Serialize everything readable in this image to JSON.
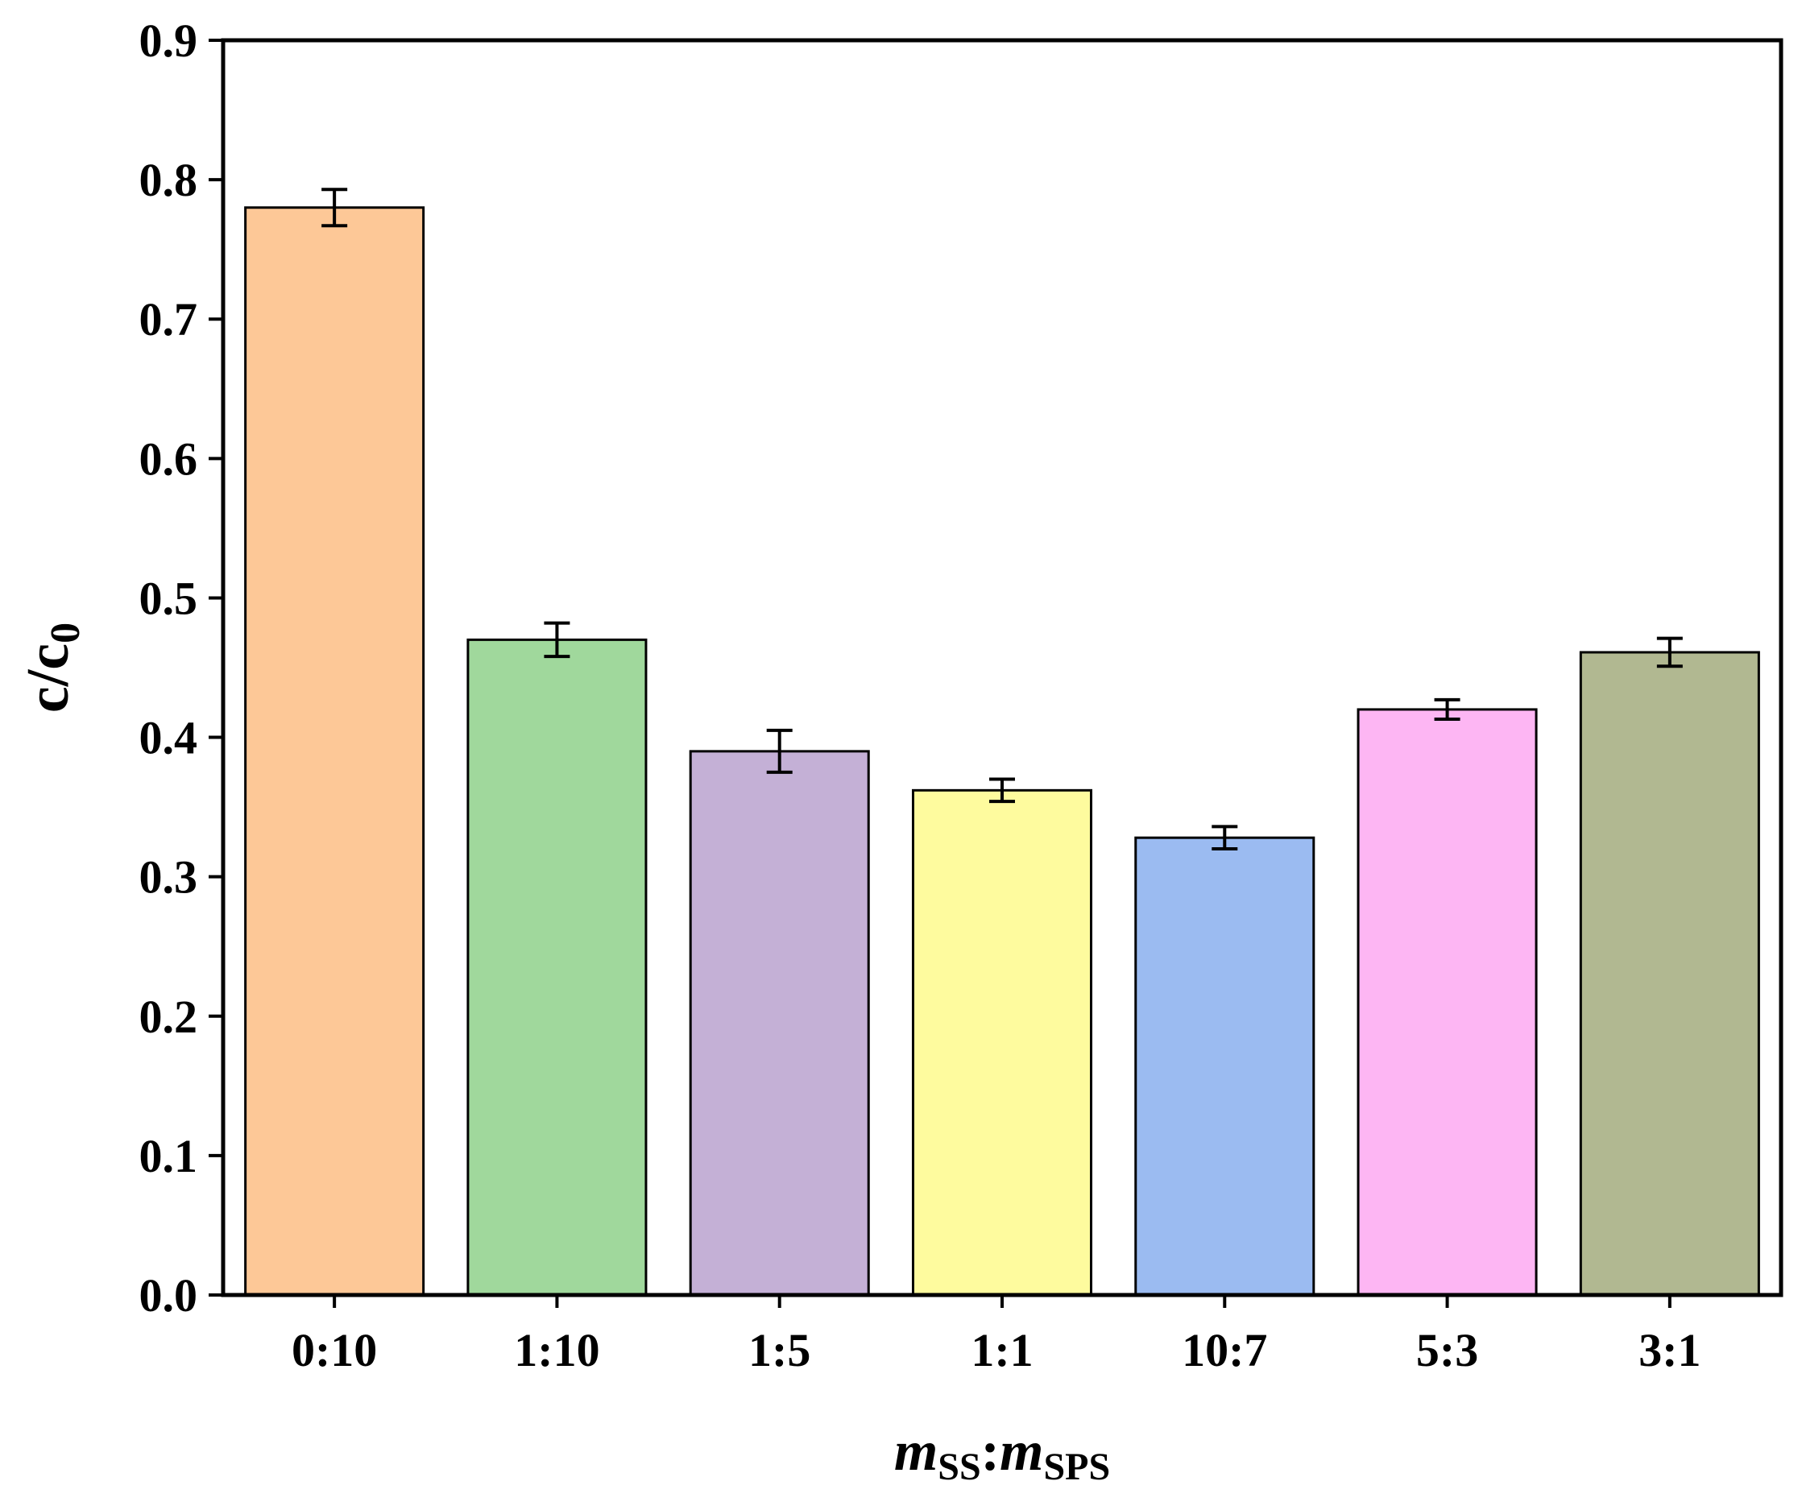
{
  "chart_data": {
    "type": "bar",
    "categories": [
      "0:10",
      "1:10",
      "1:5",
      "1:1",
      "10:7",
      "5:3",
      "3:1"
    ],
    "values": [
      0.78,
      0.47,
      0.39,
      0.362,
      0.328,
      0.42,
      0.461
    ],
    "errors": [
      0.013,
      0.012,
      0.015,
      0.008,
      0.008,
      0.007,
      0.01
    ],
    "colors": [
      "#FDC897",
      "#A0D89C",
      "#C4B0D6",
      "#FEFB9E",
      "#9BBBF1",
      "#FDB6F3",
      "#B1B891"
    ],
    "xlabel": {
      "italic_1": "m",
      "sub_1": "SS",
      "separator": ":",
      "italic_2": "m",
      "sub_2": "SPS"
    },
    "ylabel": {
      "main": "c/c",
      "sub": "0"
    },
    "ylim": [
      0,
      0.9
    ],
    "yticks": [
      "0.0",
      "0.1",
      "0.2",
      "0.3",
      "0.4",
      "0.5",
      "0.6",
      "0.7",
      "0.8",
      "0.9"
    ],
    "grid": false,
    "legend": "none",
    "error_bars": true
  }
}
